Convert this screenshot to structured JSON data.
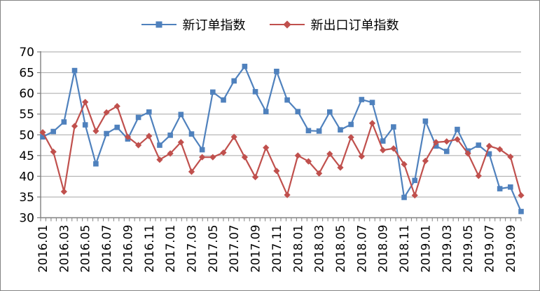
{
  "chart_data": {
    "type": "line",
    "title": "",
    "x": [
      "2016.01",
      "2016.02",
      "2016.03",
      "2016.04",
      "2016.05",
      "2016.06",
      "2016.07",
      "2016.08",
      "2016.09",
      "2016.10",
      "2016.11",
      "2016.12",
      "2017.01",
      "2017.02",
      "2017.03",
      "2017.04",
      "2017.05",
      "2017.06",
      "2017.07",
      "2017.08",
      "2017.09",
      "2017.10",
      "2017.11",
      "2017.12",
      "2018.01",
      "2018.02",
      "2018.03",
      "2018.04",
      "2018.05",
      "2018.06",
      "2018.07",
      "2018.08",
      "2018.09",
      "2018.10",
      "2018.11",
      "2018.12",
      "2019.01",
      "2019.02",
      "2019.03",
      "2019.04",
      "2019.05",
      "2019.06",
      "2019.07",
      "2019.08",
      "2019.09",
      "2019.10"
    ],
    "x_axis_labels_shown": [
      "2016.01",
      "2016.03",
      "2016.05",
      "2016.07",
      "2016.09",
      "2016.11",
      "2017.01",
      "2017.03",
      "2017.05",
      "2017.07",
      "2017.09",
      "2017.11",
      "2018.01",
      "2018.03",
      "2018.05",
      "2018.07",
      "2018.09",
      "2018.11",
      "2019.01",
      "2019.03",
      "2019.05",
      "2019.07",
      "2019.09"
    ],
    "y_axis": {
      "min": 30,
      "max": 70,
      "step": 5,
      "tick_labels": [
        "70",
        "65",
        "60",
        "55",
        "50",
        "45",
        "40",
        "35",
        "30"
      ]
    },
    "series": [
      {
        "name": "新订单指数",
        "color": "#4F81BD",
        "marker": "square",
        "values": [
          49.5,
          50.8,
          53.1,
          65.5,
          52.4,
          43.0,
          50.3,
          51.8,
          49.0,
          54.2,
          55.5,
          47.5,
          49.9,
          54.9,
          50.2,
          46.4,
          60.3,
          58.4,
          63.0,
          66.5,
          60.4,
          55.6,
          65.3,
          58.4,
          55.6,
          51.0,
          50.9,
          55.5,
          51.2,
          52.5,
          58.5,
          57.8,
          48.5,
          51.9,
          34.9,
          39.0,
          53.3,
          47.3,
          46.0,
          51.3,
          46.1,
          47.5,
          45.4,
          37.0,
          37.4,
          31.5
        ]
      },
      {
        "name": "新出口订单指数",
        "color": "#C0504D",
        "marker": "diamond",
        "values": [
          50.6,
          45.9,
          36.3,
          52.1,
          57.9,
          50.9,
          55.4,
          56.9,
          49.5,
          47.5,
          49.7,
          44.0,
          45.5,
          48.2,
          41.1,
          44.6,
          44.6,
          45.7,
          49.5,
          44.6,
          39.8,
          46.9,
          41.3,
          35.5,
          45.0,
          43.6,
          40.7,
          45.4,
          42.1,
          49.4,
          44.8,
          52.8,
          46.3,
          46.7,
          42.9,
          35.4,
          43.7,
          48.2,
          48.4,
          48.9,
          45.5,
          40.1,
          47.3,
          46.5,
          44.7,
          35.4
        ]
      }
    ],
    "grid": true,
    "legend_position": "top-center",
    "background": "#FFFFFF",
    "gridline_color": "#A6A6A6",
    "axis_color": "#808080",
    "border_color": "#858585"
  },
  "legend": {
    "items": [
      {
        "label": "新订单指数",
        "color": "#4F81BD",
        "marker": "square"
      },
      {
        "label": "新出口订单指数",
        "color": "#C0504D",
        "marker": "diamond"
      }
    ]
  }
}
